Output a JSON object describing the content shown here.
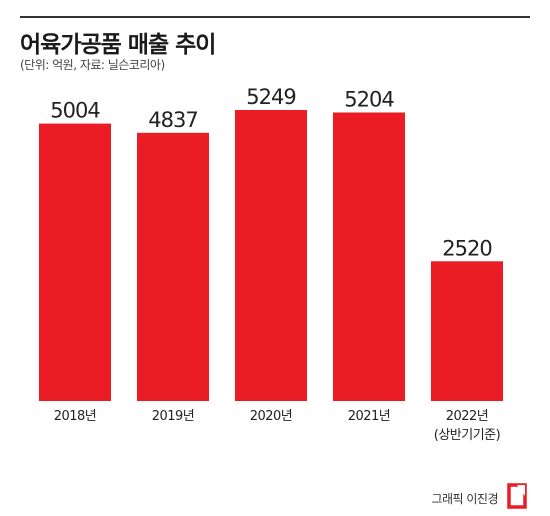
{
  "header": {
    "title": "어육가공품 매출 추이",
    "subtitle": "(단위: 억원, 자료: 닐슨코리아)"
  },
  "footer": {
    "credit": "그래픽 이진경"
  },
  "colors": {
    "bar": "#ea1c24",
    "text": "#222222",
    "rule": "#333333"
  },
  "chart_data": {
    "type": "bar",
    "title": "어육가공품 매출 추이",
    "xlabel": "",
    "ylabel": "",
    "unit": "억원",
    "categories": [
      "2018년",
      "2019년",
      "2020년",
      "2021년",
      "2022년"
    ],
    "category_notes": [
      "",
      "",
      "",
      "",
      "(상반기기준)"
    ],
    "values": [
      5004,
      4837,
      5249,
      5204,
      2520
    ],
    "ylim": [
      0,
      5249
    ],
    "grid": false,
    "legend": "none"
  }
}
